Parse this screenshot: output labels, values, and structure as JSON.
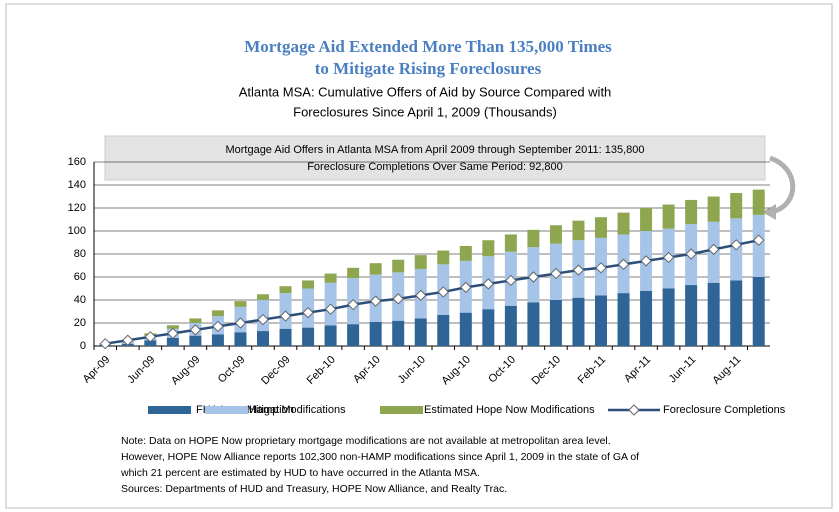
{
  "chart_data": {
    "type": "bar",
    "title": [
      "Mortgage Aid Extended More Than 135,000 Times",
      "to Mitigate Rising Foreclosures"
    ],
    "subtitle": [
      "Atlanta MSA: Cumulative Offers of Aid by Source Compared with",
      "Foreclosures Since April 1, 2009  (Thousands)"
    ],
    "annotation": [
      "Mortgage Aid Offers in Atlanta MSA from April 2009 through September 2011: 135,800",
      "Foreclosure Completions Over Same Period: 92,800"
    ],
    "categories": [
      "Apr-09",
      null,
      "Jun-09",
      null,
      "Aug-09",
      null,
      "Oct-09",
      null,
      "Dec-09",
      null,
      "Feb-10",
      null,
      "Apr-10",
      null,
      "Jun-10",
      null,
      "Aug-10",
      null,
      "Oct-10",
      null,
      "Dec-10",
      null,
      "Feb-11",
      null,
      "Apr-11",
      null,
      "Jun-11",
      null,
      "Aug-11",
      null
    ],
    "series": [
      {
        "name": "FHA Loss Mitigation",
        "type": "bar",
        "color": "#2f6497",
        "values": [
          1,
          2,
          5,
          7,
          9,
          10,
          12,
          13,
          15,
          16,
          18,
          19,
          21,
          22,
          24,
          27,
          29,
          32,
          35,
          38,
          40,
          42,
          44,
          46,
          48,
          50,
          53,
          55,
          57,
          60
        ]
      },
      {
        "name": "Hamp Modifications",
        "type": "bar",
        "color": "#a6c4e8",
        "values": [
          0.5,
          2,
          4,
          8,
          11,
          16,
          22,
          27,
          31,
          34,
          37,
          40,
          41,
          42,
          43,
          44,
          45,
          46,
          47,
          48,
          49,
          50,
          50,
          51,
          52,
          52,
          53,
          53,
          54,
          54
        ]
      },
      {
        "name": "Estimated Hope Now Modifications",
        "type": "bar",
        "color": "#8ea650",
        "values": [
          0.5,
          1,
          2,
          3,
          4,
          5,
          5,
          5,
          6,
          7,
          8,
          9,
          10,
          11,
          12,
          12,
          13,
          14,
          15,
          15,
          16,
          17,
          18,
          19,
          20,
          21,
          21,
          22,
          22,
          22
        ]
      },
      {
        "name": "Foreclosure Completions",
        "type": "line",
        "color": "#2b4f7a",
        "values": [
          2,
          5,
          8,
          11,
          14,
          17,
          20,
          23,
          26,
          29,
          32,
          36,
          39,
          41,
          44,
          47,
          51,
          54,
          57,
          60,
          63,
          66,
          68,
          71,
          74,
          77,
          80,
          84,
          88,
          92
        ]
      }
    ],
    "ylim": [
      0,
      160
    ],
    "yticks": [
      0,
      20,
      40,
      60,
      80,
      100,
      120,
      140,
      160
    ],
    "grid": true,
    "notes": [
      "Note:  Data on HOPE Now proprietary mortgage modifications are not available at metropolitan area level.",
      "However, HOPE Now Alliance reports 102,300 non-HAMP modifications since April 1, 2009 in the state of GA of",
      "which 21 percent are estimated by HUD to have occurred in the Atlanta MSA.",
      "Sources:  Departments of HUD and Treasury, HOPE Now Alliance, and Realty Trac."
    ]
  }
}
